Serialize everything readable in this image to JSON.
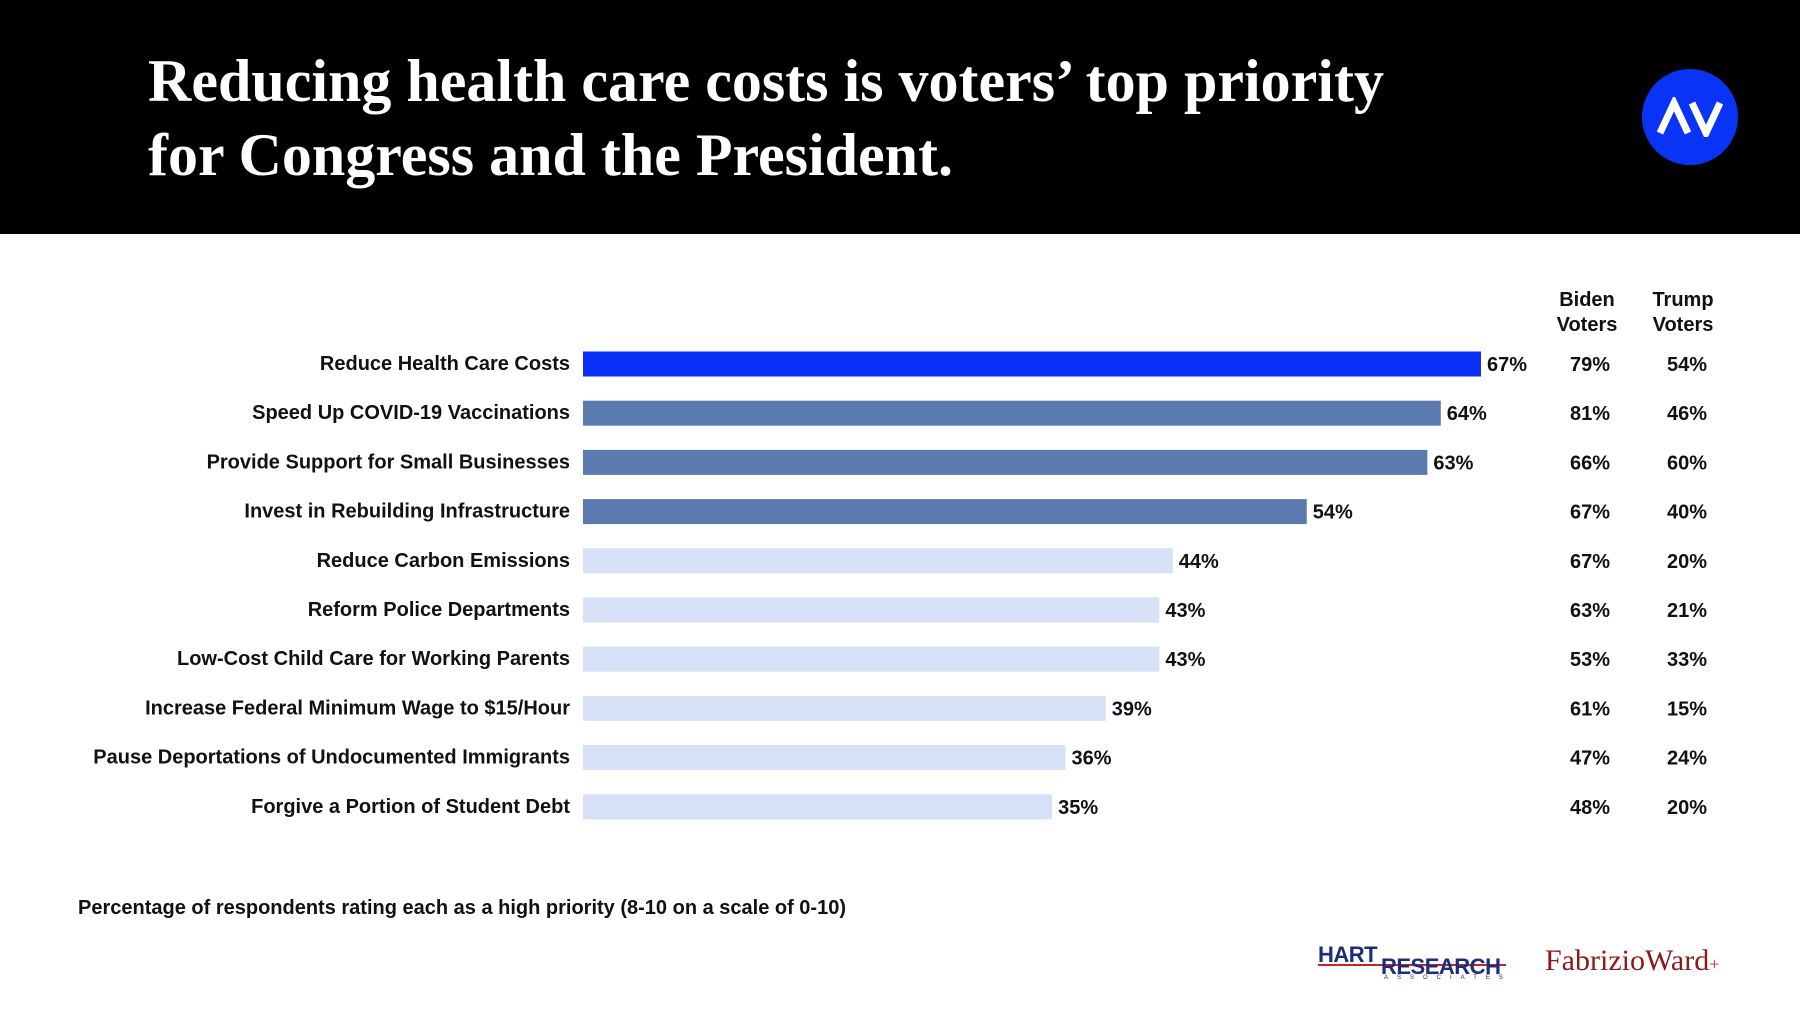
{
  "header": {
    "title_line1": "Reducing health care costs is voters’ top priority",
    "title_line2": "for Congress and the President.",
    "logo_text": "AV"
  },
  "columns": {
    "biden": {
      "line1": "Biden",
      "line2": "Voters"
    },
    "trump": {
      "line1": "Trump",
      "line2": "Voters"
    }
  },
  "chart_data": {
    "type": "bar",
    "orientation": "horizontal",
    "title": "Reducing health care costs is voters’ top priority for Congress and the President.",
    "xlabel": "",
    "ylabel": "",
    "xlim": [
      0,
      100
    ],
    "grid": false,
    "categories": [
      "Reduce Health Care Costs",
      "Speed Up COVID-19 Vaccinations",
      "Provide Support for Small Businesses",
      "Invest in Rebuilding Infrastructure",
      "Reduce Carbon Emissions",
      "Reform Police Departments",
      "Low-Cost Child Care for Working Parents",
      "Increase Federal Minimum Wage to $15/Hour",
      "Pause Deportations of Undocumented Immigrants",
      "Forgive a Portion of Student Debt"
    ],
    "values": [
      67,
      64,
      63,
      54,
      44,
      43,
      43,
      39,
      36,
      35
    ],
    "value_labels": [
      "67%",
      "64%",
      "63%",
      "54%",
      "44%",
      "43%",
      "43%",
      "39%",
      "36%",
      "35%"
    ],
    "bar_colors": [
      "#0a2ff5",
      "#5b7bb0",
      "#5b7bb0",
      "#5b7bb0",
      "#d6e0f7",
      "#d6e0f7",
      "#d6e0f7",
      "#d6e0f7",
      "#d6e0f7",
      "#d6e0f7"
    ],
    "table_columns": [
      "Biden Voters",
      "Trump Voters"
    ],
    "biden_voters": [
      "79%",
      "81%",
      "66%",
      "67%",
      "67%",
      "63%",
      "53%",
      "61%",
      "47%",
      "48%"
    ],
    "trump_voters": [
      "54%",
      "46%",
      "60%",
      "40%",
      "20%",
      "21%",
      "33%",
      "15%",
      "24%",
      "20%"
    ]
  },
  "footnote": "Percentage of respondents rating each as a high priority (8-10 on a scale of 0-10)",
  "logos": {
    "hart_line1": "HART",
    "hart_line2": "RESEARCH",
    "hart_line3": "ASSOCIATES",
    "fabrizio": "FabrizioWard",
    "fabrizio_plus": "+"
  }
}
